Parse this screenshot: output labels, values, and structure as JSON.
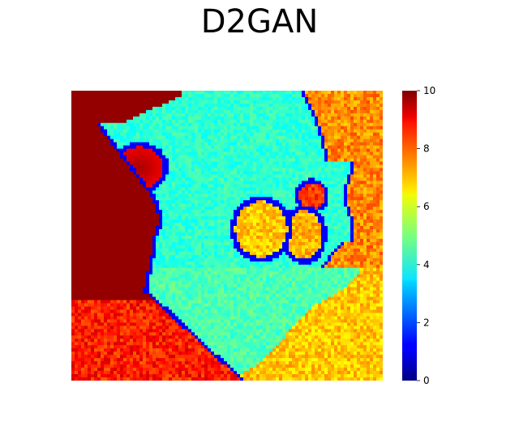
{
  "chart_data": {
    "type": "heatmap",
    "title": "D2GAN",
    "xlabel": "",
    "ylabel": "",
    "axes_visible": false,
    "colormap": "jet",
    "colorbar": {
      "range": [
        0,
        10
      ],
      "ticks": [
        0,
        2,
        4,
        6,
        8,
        10
      ],
      "tick_labels": [
        "0",
        "2",
        "4",
        "6",
        "8",
        "10"
      ],
      "placement": "right"
    },
    "grid": false,
    "field": {
      "background_level": 4.2,
      "regions": [
        {
          "name": "dark-left-wall",
          "level": 9.8
        },
        {
          "name": "lower-left-orange-zone",
          "level": 8.5
        },
        {
          "name": "right-orange-zone",
          "level": 7.4
        },
        {
          "name": "lower-right-yellow-zone",
          "level": 6.8
        },
        {
          "name": "upper-left-cell",
          "level": 9.6
        },
        {
          "name": "center-droplet-large",
          "level": 6.8
        },
        {
          "name": "center-droplet-small",
          "level": 7.0
        },
        {
          "name": "upper-right-droplet",
          "level": 8.2
        }
      ],
      "boundary_level": 1.2
    }
  }
}
